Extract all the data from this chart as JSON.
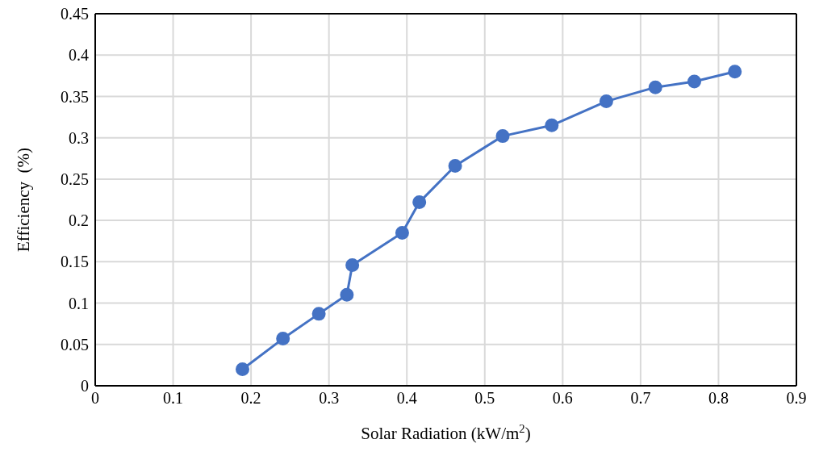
{
  "chart_data": {
    "type": "line",
    "xlabel": "Solar Radiation (kW/m$^{2}$)",
    "ylabel": "Efficiency  (%)",
    "x": [
      0.189,
      0.241,
      0.287,
      0.323,
      0.33,
      0.394,
      0.416,
      0.462,
      0.523,
      0.586,
      0.656,
      0.719,
      0.769,
      0.821
    ],
    "series": [
      {
        "color": "#4472c4",
        "values": [
          0.02,
          0.057,
          0.087,
          0.11,
          0.146,
          0.185,
          0.222,
          0.266,
          0.302,
          0.315,
          0.344,
          0.361,
          0.368,
          0.38
        ]
      }
    ],
    "xlim": [
      0,
      0.9
    ],
    "xticks": [
      0,
      0.1,
      0.2,
      0.3,
      0.4,
      0.5,
      0.6,
      0.7,
      0.8,
      0.9
    ],
    "ylim": [
      0,
      0.45
    ],
    "yticks": [
      0,
      0.05,
      0.1,
      0.15,
      0.2,
      0.25,
      0.3,
      0.35,
      0.4,
      0.45
    ],
    "grid": true,
    "legend": false,
    "marker": "circle",
    "line_style": "solid"
  }
}
